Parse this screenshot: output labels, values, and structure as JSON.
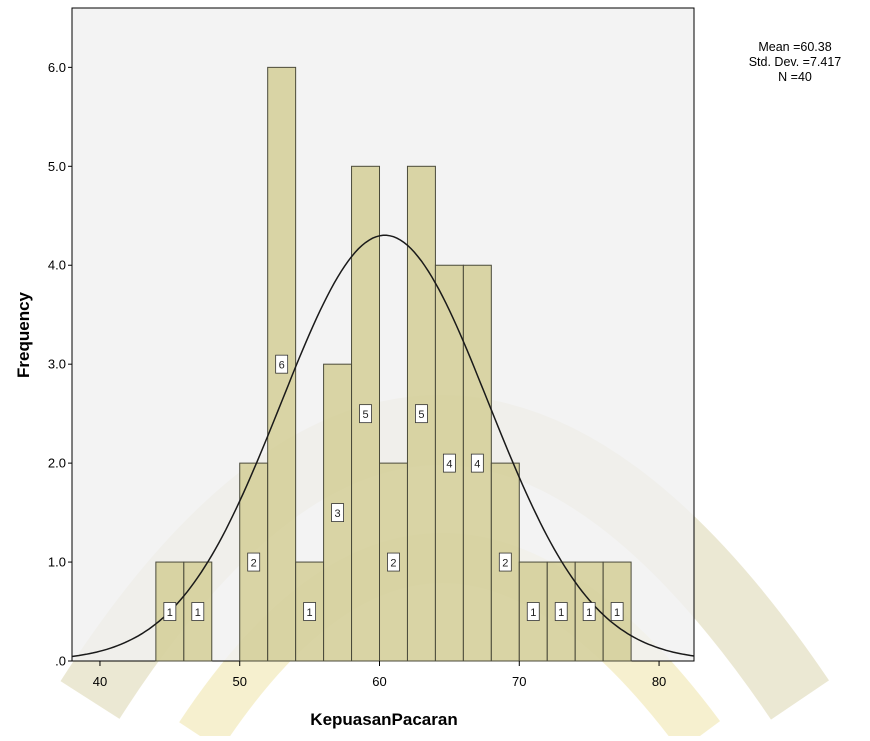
{
  "chart_data": {
    "type": "bar",
    "subtype": "histogram",
    "xlabel": "KepuasanPacaran",
    "ylabel": "Frequency",
    "xlim": [
      38,
      82.5
    ],
    "ylim": [
      0,
      6.6
    ],
    "x_ticks": [
      40,
      50,
      60,
      70,
      80
    ],
    "y_ticks": [
      {
        "value": 0,
        "label": ".0"
      },
      {
        "value": 1,
        "label": "1.0"
      },
      {
        "value": 2,
        "label": "2.0"
      },
      {
        "value": 3,
        "label": "3.0"
      },
      {
        "value": 4,
        "label": "4.0"
      },
      {
        "value": 5,
        "label": "5.0"
      },
      {
        "value": 6,
        "label": "6.0"
      }
    ],
    "bin_width": 2,
    "bins": [
      {
        "start": 44,
        "end": 46,
        "count": 1,
        "label": "1"
      },
      {
        "start": 46,
        "end": 48,
        "count": 1,
        "label": "1"
      },
      {
        "start": 50,
        "end": 52,
        "count": 2,
        "label": "2"
      },
      {
        "start": 52,
        "end": 54,
        "count": 6,
        "label": "6"
      },
      {
        "start": 54,
        "end": 56,
        "count": 1,
        "label": "1"
      },
      {
        "start": 56,
        "end": 58,
        "count": 3,
        "label": "3"
      },
      {
        "start": 58,
        "end": 60,
        "count": 5,
        "label": "5"
      },
      {
        "start": 60,
        "end": 62,
        "count": 2,
        "label": "2"
      },
      {
        "start": 62,
        "end": 64,
        "count": 5,
        "label": "5"
      },
      {
        "start": 64,
        "end": 66,
        "count": 4,
        "label": "4"
      },
      {
        "start": 66,
        "end": 68,
        "count": 4,
        "label": "4"
      },
      {
        "start": 68,
        "end": 70,
        "count": 2,
        "label": "2"
      },
      {
        "start": 70,
        "end": 72,
        "count": 1,
        "label": "1"
      },
      {
        "start": 72,
        "end": 74,
        "count": 1,
        "label": "1"
      },
      {
        "start": 74,
        "end": 76,
        "count": 1,
        "label": "1"
      },
      {
        "start": 76,
        "end": 78,
        "count": 1,
        "label": "1"
      }
    ],
    "normal_curve": {
      "mean": 60.38,
      "sd": 7.417,
      "n": 40
    },
    "stats": {
      "mean_text": "Mean =60.38",
      "sd_text": "Std. Dev. =7.417",
      "n_text": "N =40"
    },
    "grid": false,
    "colors": {
      "plot_background": "#f0f0f0",
      "bar_fill": "#d3ce97",
      "bar_stroke": "#4a4a3a",
      "curve": "#1a1a1a"
    }
  }
}
